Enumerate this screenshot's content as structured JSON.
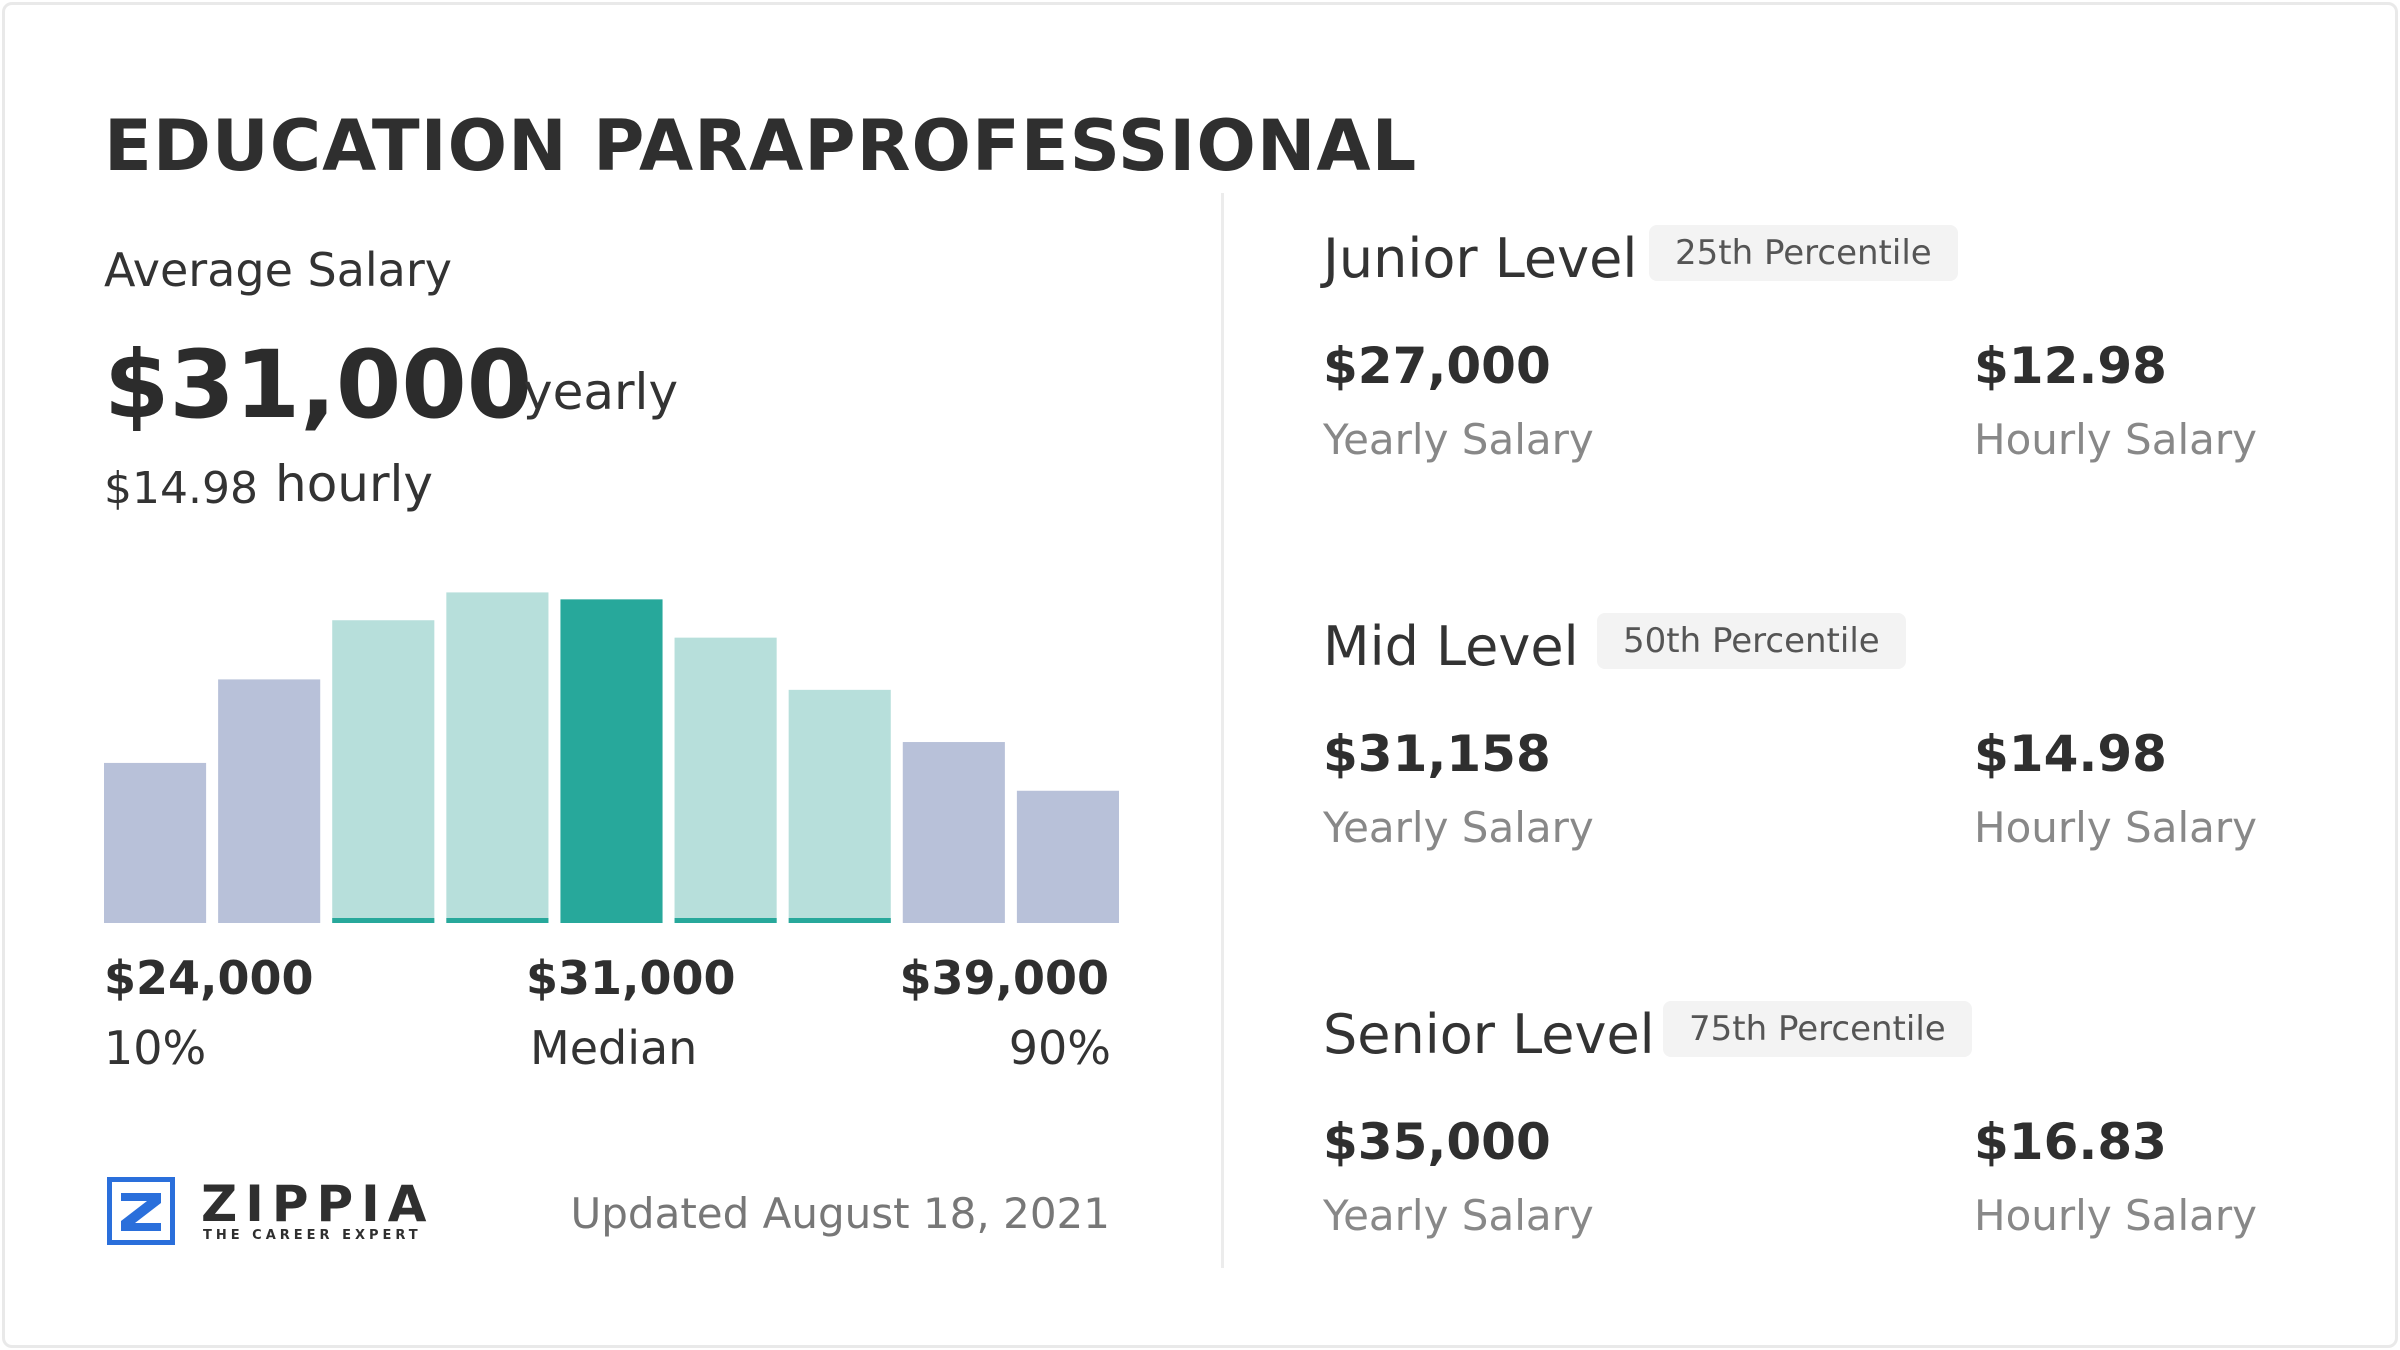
{
  "title": "EDUCATION PARAPROFESSIONAL",
  "average": {
    "label": "Average Salary",
    "yearly_value": "$31,000",
    "yearly_unit": "yearly",
    "hourly_value": "$14.98",
    "hourly_unit": "hourly"
  },
  "chart_data": {
    "type": "bar",
    "values": [
      0.46,
      0.7,
      0.87,
      0.95,
      0.93,
      0.82,
      0.67,
      0.52,
      0.38
    ],
    "bar_roles": [
      "outer",
      "outer",
      "inner",
      "inner",
      "median",
      "inner",
      "inner",
      "outer",
      "outer"
    ],
    "ylim": [
      0,
      1
    ],
    "tick_labels": [
      {
        "value": "$24,000",
        "percentile": "10%"
      },
      {
        "value": "$31,000",
        "percentile": "Median"
      },
      {
        "value": "$39,000",
        "percentile": "90%"
      }
    ],
    "colors": {
      "outer": "#b8c1d9",
      "inner": "#b7dfdb",
      "median": "#27a89b",
      "underline": "#27a89b"
    },
    "grid": false,
    "legend": "none"
  },
  "levels": [
    {
      "name": "Junior Level",
      "percentile": "25th Percentile",
      "yearly": "$27,000",
      "yearly_label": "Yearly Salary",
      "hourly": "$12.98",
      "hourly_label": "Hourly Salary"
    },
    {
      "name": "Mid Level",
      "percentile": "50th Percentile",
      "yearly": "$31,158",
      "yearly_label": "Yearly Salary",
      "hourly": "$14.98",
      "hourly_label": "Hourly Salary"
    },
    {
      "name": "Senior Level",
      "percentile": "75th Percentile",
      "yearly": "$35,000",
      "yearly_label": "Yearly Salary",
      "hourly": "$16.83",
      "hourly_label": "Hourly Salary"
    }
  ],
  "footer": {
    "brand": "ZIPPIA",
    "tagline": "THE CAREER EXPERT",
    "updated": "Updated August 18, 2021",
    "logo_icon": "zippia-logo-icon",
    "brand_color": "#2a6fdb"
  }
}
